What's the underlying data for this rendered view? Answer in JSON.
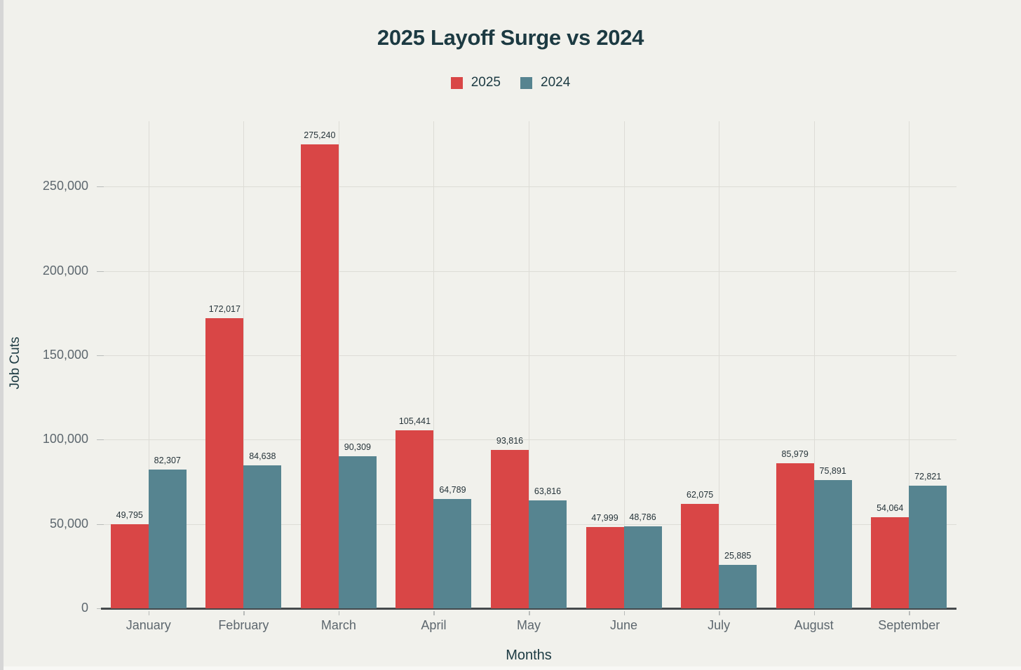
{
  "page": {
    "background": "#f1f1ec",
    "left_edge_color": "#d6d6d6",
    "bottom_edge_color": "#f8f8f5"
  },
  "colors": {
    "title_text": "#1c3a42",
    "tick_label_text": "#5d676e",
    "value_label_text": "#253339",
    "gridline": "#dddcd6",
    "axis_line": "#45494c",
    "series_2025": "#d94646",
    "series_2024": "#568490"
  },
  "chart_data": {
    "type": "bar",
    "title": "2025 Layoff Surge vs 2024",
    "xlabel": "Months",
    "ylabel": "Job Cuts",
    "categories": [
      "January",
      "February",
      "March",
      "April",
      "May",
      "June",
      "July",
      "August",
      "September"
    ],
    "series": [
      {
        "name": "2025",
        "color": "#d94646",
        "values": [
          49795,
          172017,
          275240,
          105441,
          93816,
          47999,
          62075,
          85979,
          54064
        ]
      },
      {
        "name": "2024",
        "color": "#568490",
        "values": [
          82307,
          84638,
          90309,
          64789,
          63816,
          48786,
          25885,
          75891,
          72821
        ]
      }
    ],
    "yticks": [
      0,
      50000,
      100000,
      150000,
      200000,
      250000
    ],
    "ylim": [
      0,
      290000
    ],
    "grid": true,
    "legend_position": "top-center",
    "value_labels": true,
    "value_label_format": "thousands-comma"
  }
}
